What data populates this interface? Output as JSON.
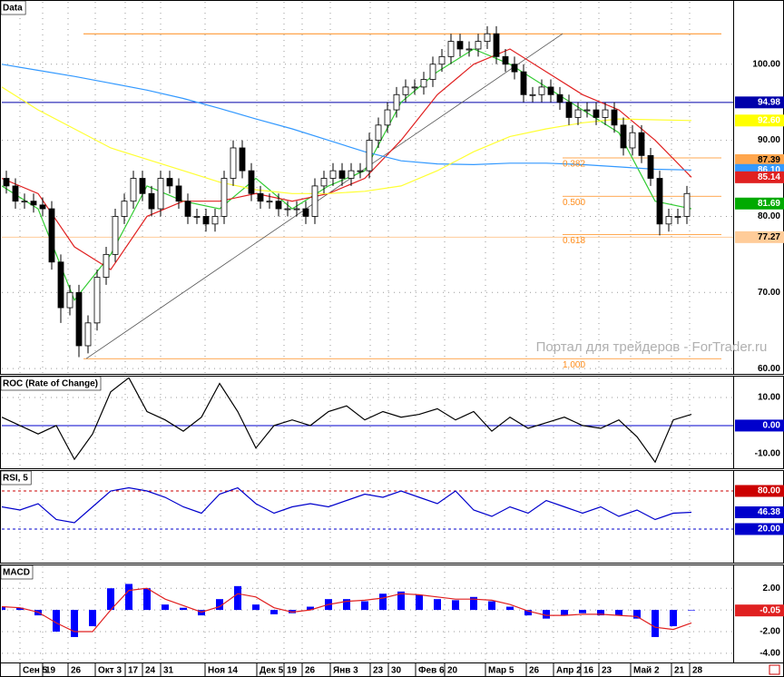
{
  "chart_data": [
    {
      "type": "candlestick",
      "title": "Data",
      "xlim": [
        0,
        80.6
      ],
      "xticks": [
        {
          "value": 2.0,
          "label": "Сен 5"
        },
        {
          "value": 4.5,
          "label": "19"
        },
        {
          "value": 7.3,
          "label": "26"
        },
        {
          "value": 10.3,
          "label": "Окт 3"
        },
        {
          "value": 13.6,
          "label": "17"
        },
        {
          "value": 15.5,
          "label": "24"
        },
        {
          "value": 17.5,
          "label": "31"
        },
        {
          "value": 22.4,
          "label": "Ноя 14"
        },
        {
          "value": 28.1,
          "label": "Дек 5"
        },
        {
          "value": 31.1,
          "label": "19"
        },
        {
          "value": 33.1,
          "label": "26"
        },
        {
          "value": 36.2,
          "label": "Янв 3"
        },
        {
          "value": 40.6,
          "label": "23"
        },
        {
          "value": 42.6,
          "label": "30"
        },
        {
          "value": 45.6,
          "label": "Фев 6"
        },
        {
          "value": 48.8,
          "label": "20"
        },
        {
          "value": 53.3,
          "label": "Мар 5"
        },
        {
          "value": 57.8,
          "label": "26"
        },
        {
          "value": 60.8,
          "label": "Апр 2"
        },
        {
          "value": 63.8,
          "label": "16"
        },
        {
          "value": 65.8,
          "label": "23"
        },
        {
          "value": 69.3,
          "label": "Май 2"
        },
        {
          "value": 73.8,
          "label": "21"
        },
        {
          "value": 75.8,
          "label": "28"
        }
      ],
      "ylim": [
        59.3,
        108.2
      ],
      "yticks": [
        {
          "value": 60,
          "label": "60.00"
        },
        {
          "value": 70,
          "label": "70.00"
        },
        {
          "value": 80,
          "label": "80.00"
        },
        {
          "value": 90,
          "label": "90.00"
        },
        {
          "value": 100,
          "label": "100.00"
        }
      ],
      "grid": true,
      "watermark": "Портал для трейдеров - ForTrader.ru",
      "candles": {
        "x": [
          0.5,
          1.5,
          2.5,
          3.5,
          4.5,
          5.5,
          6.5,
          7.5,
          8.5,
          9.5,
          10.5,
          11.5,
          12.5,
          13.5,
          14.5,
          15.5,
          16.5,
          17.5,
          18.5,
          19.5,
          20.5,
          21.5,
          22.5,
          23.5,
          24.5,
          25.5,
          26.5,
          27.5,
          28.5,
          29.5,
          30.5,
          31.5,
          32.5,
          33.5,
          34.5,
          35.5,
          36.5,
          37.5,
          38.5,
          39.5,
          40.5,
          41.5,
          42.5,
          43.5,
          44.5,
          45.5,
          46.5,
          47.5,
          48.5,
          49.5,
          50.5,
          51.5,
          52.5,
          53.5,
          54.5,
          55.5,
          56.5,
          57.5,
          58.5,
          59.5,
          60.5,
          61.5,
          62.5,
          63.5,
          64.5,
          65.5,
          66.5,
          67.5,
          68.5,
          69.5,
          70.5,
          71.5,
          72.5,
          73.5,
          74.5,
          75.5
        ],
        "open": [
          85,
          84,
          82,
          82,
          81.5,
          81,
          74,
          68,
          70,
          63,
          66,
          72,
          75,
          80,
          82,
          85,
          83,
          81,
          85,
          84,
          82,
          80,
          80,
          79,
          80,
          85,
          89,
          86,
          83,
          82,
          82,
          81,
          81,
          81,
          80,
          84,
          85,
          86,
          85,
          86,
          86,
          90,
          92,
          94,
          96,
          97,
          97,
          98,
          100,
          101,
          103,
          102,
          102,
          103,
          104,
          101,
          100,
          99,
          96,
          96,
          97,
          96,
          95,
          93,
          94,
          94,
          93,
          94,
          92,
          89,
          91,
          88,
          85,
          79,
          80,
          80
        ],
        "high": [
          86,
          85,
          83,
          83,
          82.5,
          82,
          75,
          71,
          71,
          67,
          73,
          76,
          81,
          83,
          86,
          86,
          84,
          86,
          86,
          85,
          83,
          81,
          81,
          81,
          86,
          90,
          90,
          87,
          84,
          83,
          83,
          82,
          82,
          82,
          85,
          86,
          87,
          87,
          87,
          87,
          91,
          93,
          95,
          97,
          98,
          98,
          99,
          101,
          102,
          104,
          104,
          103,
          104,
          105,
          105,
          102,
          101,
          100,
          97,
          98,
          98,
          97,
          96,
          95,
          95,
          95,
          95,
          95,
          93,
          92,
          92,
          89,
          86,
          81,
          81,
          84
        ],
        "low": [
          83,
          81,
          81,
          80.5,
          80,
          73,
          66,
          67,
          61.5,
          62,
          65,
          71,
          74,
          79,
          81,
          82,
          80,
          80,
          83,
          81,
          79,
          79,
          78,
          78,
          79,
          84,
          85,
          82,
          81,
          81,
          80,
          80,
          80,
          79,
          79,
          83,
          84,
          84,
          84,
          85,
          85,
          89,
          91,
          93,
          95,
          96,
          96,
          97,
          99,
          100,
          101,
          101,
          101,
          102,
          100,
          99,
          98,
          95,
          95,
          95,
          95,
          94,
          92,
          92,
          93,
          92,
          92,
          91,
          88,
          88,
          87,
          84,
          77.5,
          78,
          79,
          79
        ],
        "close": [
          84,
          82,
          82,
          81.5,
          81,
          74,
          68,
          70,
          63,
          66,
          72,
          75,
          80,
          82,
          85,
          83,
          81,
          85,
          84,
          82,
          80,
          80,
          79,
          80,
          85,
          89,
          86,
          83,
          82,
          82,
          81,
          81,
          81,
          80,
          84,
          85,
          86,
          85,
          86,
          86,
          90,
          92,
          94,
          96,
          97,
          97,
          98,
          100,
          101,
          103,
          102,
          102,
          103,
          104,
          101,
          100,
          99,
          96,
          96,
          97,
          96,
          95,
          93,
          94,
          94,
          93,
          94,
          92,
          89,
          91,
          88,
          85,
          79,
          80,
          80,
          83
        ]
      },
      "x": [
        0,
        4,
        8,
        12,
        16,
        20,
        24,
        28,
        32,
        36,
        40,
        44,
        48,
        52,
        56,
        60,
        64,
        68,
        72,
        76
      ],
      "series": [
        {
          "color": "#33cc33",
          "values": [
            84,
            81,
            69,
            75,
            84,
            82,
            81,
            85,
            81,
            84,
            86,
            95,
            99,
            102,
            100,
            97,
            94,
            91,
            82,
            81
          ]
        },
        {
          "color": "#e02020",
          "values": [
            85,
            83,
            76,
            73,
            80,
            82,
            82,
            83,
            82,
            83,
            85,
            90,
            96,
            100,
            102,
            99,
            96,
            94,
            90,
            85.14
          ]
        },
        {
          "color": "#3399ff",
          "values": [
            100,
            99.2,
            98.4,
            97.5,
            96.6,
            95.5,
            94.2,
            92.8,
            91.5,
            90,
            88.5,
            87.3,
            86.9,
            86.8,
            87,
            87,
            86.8,
            86.5,
            86.2,
            86.1
          ]
        },
        {
          "color": "#ffff33",
          "values": [
            97,
            94,
            91.5,
            89,
            87.5,
            86,
            84.5,
            83.5,
            83,
            83,
            83.3,
            84,
            86,
            88.5,
            90.5,
            91.5,
            92.3,
            92.8,
            92.7,
            92.6
          ]
        }
      ],
      "trendline": {
        "x": [
          9.3,
          61.8
        ],
        "values": [
          61.3,
          104
        ]
      },
      "fibonacci": {
        "high": 104,
        "low": 61.3,
        "color": "#ff8c1a",
        "levels": [
          {
            "value": 0.382,
            "label": "0.382"
          },
          {
            "value": 0.5,
            "label": "0.500"
          },
          {
            "value": 0.618,
            "label": "0.618"
          },
          {
            "value": 1,
            "label": "1.000"
          }
        ]
      },
      "markers": [
        {
          "value": 94.98,
          "label": "94.98",
          "bg": "#0000aa",
          "fg": "#ffffff",
          "line": "solid"
        },
        {
          "value": 92.6,
          "label": "92.60",
          "bg": "#ffff00",
          "fg": "#ffffff"
        },
        {
          "value": 87.39,
          "label": "87.39",
          "bg": "#ffa64d",
          "fg": "#000000"
        },
        {
          "value": 86.1,
          "label": "86.10",
          "bg": "#3399ff",
          "fg": "#ffffff"
        },
        {
          "value": 85.14,
          "label": "85.14",
          "bg": "#e02020",
          "fg": "#ffffff"
        },
        {
          "value": 81.69,
          "label": "81.69",
          "bg": "#00aa00",
          "fg": "#ffffff"
        },
        {
          "value": 77.27,
          "label": "77.27",
          "bg": "#ffcc99",
          "fg": "#000000",
          "line": "solid"
        }
      ]
    },
    {
      "type": "line",
      "title": "ROC (Rate of Change)",
      "ylim": [
        -15.2,
        17.1
      ],
      "yticks": [
        {
          "value": 10,
          "label": "10.00"
        },
        {
          "value": -10,
          "label": "-10.00"
        }
      ],
      "grid": true,
      "x": [
        0,
        2,
        4,
        6,
        8,
        10,
        12,
        14,
        16,
        18,
        20,
        22,
        24,
        26,
        28,
        30,
        32,
        34,
        36,
        38,
        40,
        42,
        44,
        46,
        48,
        50,
        52,
        54,
        56,
        58,
        60,
        62,
        64,
        66,
        68,
        70,
        72,
        74,
        76
      ],
      "series": [
        {
          "color": "#000000",
          "values": [
            3,
            0,
            -3,
            0,
            -12,
            -3,
            12,
            17,
            5,
            2,
            -2,
            3,
            15,
            5,
            -8,
            0,
            2,
            0,
            5,
            7,
            2,
            5,
            3,
            4,
            6,
            2,
            5,
            -2,
            3,
            -1,
            1,
            3,
            0,
            -1,
            2,
            -4,
            -13,
            2,
            4
          ]
        }
      ],
      "markers": [
        {
          "value": 0,
          "label": "0.00",
          "bg": "#0000cc",
          "fg": "#ffffff",
          "line": "solid"
        }
      ]
    },
    {
      "type": "line",
      "title": "RSI, 5",
      "ylim": [
        -32.9,
        110
      ],
      "grid": true,
      "x": [
        0,
        2,
        4,
        6,
        8,
        10,
        12,
        14,
        16,
        18,
        20,
        22,
        24,
        26,
        28,
        30,
        32,
        34,
        36,
        38,
        40,
        42,
        44,
        46,
        48,
        50,
        52,
        54,
        56,
        58,
        60,
        62,
        64,
        66,
        68,
        70,
        72,
        74,
        76
      ],
      "series": [
        {
          "color": "#0000cc",
          "values": [
            55,
            50,
            60,
            35,
            30,
            55,
            80,
            85,
            80,
            70,
            55,
            45,
            75,
            85,
            60,
            45,
            55,
            60,
            55,
            65,
            75,
            70,
            80,
            70,
            60,
            80,
            50,
            40,
            55,
            45,
            65,
            55,
            45,
            55,
            40,
            50,
            35,
            45,
            46.38
          ]
        }
      ],
      "markers": [
        {
          "value": 80,
          "label": "80.00",
          "bg": "#cc0000",
          "fg": "#ffffff",
          "line": "dashed"
        },
        {
          "value": 46.38,
          "label": "46.38",
          "bg": "#0000cc",
          "fg": "#ffffff"
        },
        {
          "value": 20,
          "label": "20.00",
          "bg": "#0000cc",
          "fg": "#ffffff",
          "line": "dashed"
        }
      ]
    },
    {
      "type": "macd",
      "title": "MACD",
      "ylim": [
        -4.85,
        4.03
      ],
      "yticks": [
        {
          "value": 2,
          "label": "2.00"
        },
        {
          "value": 0,
          "label": "0.00"
        },
        {
          "value": -2,
          "label": "-2.00"
        },
        {
          "value": -4,
          "label": "-4.00"
        }
      ],
      "grid": true,
      "x": [
        0,
        2,
        4,
        6,
        8,
        10,
        12,
        14,
        16,
        18,
        20,
        22,
        24,
        26,
        28,
        30,
        32,
        34,
        36,
        38,
        40,
        42,
        44,
        46,
        48,
        50,
        52,
        54,
        56,
        58,
        60,
        62,
        64,
        66,
        68,
        70,
        72,
        74,
        76
      ],
      "histogram": {
        "color": "#0000ff",
        "values": [
          0.3,
          0.2,
          -0.5,
          -2,
          -2.5,
          -1.5,
          2,
          2.4,
          2,
          0.5,
          0.2,
          -0.5,
          1,
          2.2,
          0.5,
          -0.4,
          -0.3,
          0.3,
          1,
          1,
          0.8,
          1.5,
          1.7,
          1.4,
          1,
          0.9,
          1.2,
          0.8,
          0.3,
          -0.5,
          -0.8,
          -0.5,
          -0.3,
          -0.5,
          -0.5,
          -0.8,
          -2.5,
          -1.5,
          -0.05
        ]
      },
      "series": [
        {
          "color": "#e02020",
          "values": [
            0.3,
            0.2,
            -0.2,
            -1.2,
            -2,
            -2,
            0,
            1.8,
            2,
            1,
            0.4,
            -0.2,
            0.3,
            1.5,
            1.2,
            0.2,
            -0.2,
            0,
            0.5,
            0.8,
            0.9,
            1.1,
            1.5,
            1.4,
            1.2,
            1,
            1,
            0.9,
            0.5,
            -0.1,
            -0.5,
            -0.5,
            -0.4,
            -0.4,
            -0.5,
            -0.6,
            -1.6,
            -1.8,
            -1.2
          ]
        }
      ],
      "markers": [
        {
          "value": -0.05,
          "label": "-0.05",
          "bg": "#e02020",
          "fg": "#ffffff"
        }
      ]
    }
  ]
}
